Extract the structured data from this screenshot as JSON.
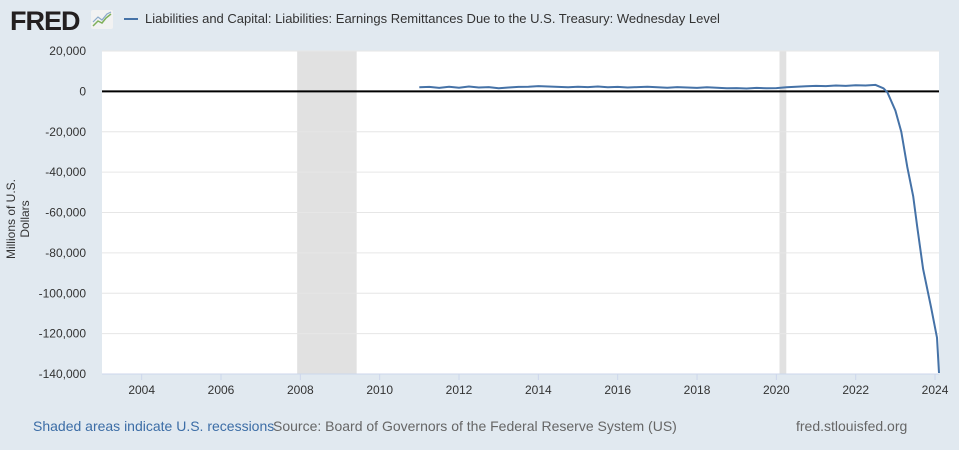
{
  "logo": "FRED",
  "chart_data": {
    "type": "line",
    "title": "Liabilities and Capital: Liabilities: Earnings Remittances Due to the U.S. Treasury: Wednesday Level",
    "ylabel": "Millions of U.S. Dollars",
    "xlabel": "",
    "xlim": [
      2003.0,
      2024.1
    ],
    "ylim": [
      -140000,
      20000
    ],
    "x_ticks": [
      "2004",
      "2006",
      "2008",
      "2010",
      "2012",
      "2014",
      "2016",
      "2018",
      "2020",
      "2022",
      "2024"
    ],
    "y_ticks": [
      "20,000",
      "0",
      "-20,000",
      "-40,000",
      "-60,000",
      "-80,000",
      "-100,000",
      "-120,000",
      "-140,000"
    ],
    "y_tick_values": [
      20000,
      0,
      -20000,
      -40000,
      -60000,
      -80000,
      -100000,
      -120000,
      -140000
    ],
    "grid": true,
    "recessions": [
      [
        2007.92,
        2009.42
      ],
      [
        2020.08,
        2020.25
      ]
    ],
    "line_color": "#4572a7",
    "series": [
      {
        "name": "Liabilities and Capital: Liabilities: Earnings Remittances Due to the U.S. Treasury: Wednesday Level",
        "x": [
          2011.0,
          2011.25,
          2011.5,
          2011.75,
          2012.0,
          2012.25,
          2012.5,
          2012.75,
          2013.0,
          2013.25,
          2013.5,
          2013.75,
          2014.0,
          2014.25,
          2014.5,
          2014.75,
          2015.0,
          2015.25,
          2015.5,
          2015.75,
          2016.0,
          2016.25,
          2016.5,
          2016.75,
          2017.0,
          2017.25,
          2017.5,
          2017.75,
          2018.0,
          2018.25,
          2018.5,
          2018.75,
          2019.0,
          2019.25,
          2019.5,
          2019.75,
          2020.0,
          2020.25,
          2020.5,
          2020.75,
          2021.0,
          2021.25,
          2021.5,
          2021.75,
          2022.0,
          2022.25,
          2022.5,
          2022.7,
          2022.8,
          2023.0,
          2023.15,
          2023.3,
          2023.45,
          2023.55,
          2023.7,
          2023.9,
          2024.05,
          2024.1
        ],
        "y": [
          2000,
          2200,
          1700,
          2300,
          1800,
          2400,
          1900,
          2100,
          1500,
          1900,
          2200,
          2300,
          2600,
          2400,
          2200,
          2000,
          2300,
          2100,
          2400,
          2000,
          2200,
          1900,
          2100,
          2300,
          2000,
          1800,
          2100,
          1900,
          1700,
          2000,
          1800,
          1500,
          1600,
          1400,
          1700,
          1500,
          1600,
          2000,
          2300,
          2500,
          2700,
          2600,
          2900,
          2700,
          3000,
          2900,
          3200,
          1500,
          -500,
          -9500,
          -20000,
          -37500,
          -52000,
          -67000,
          -88000,
          -107000,
          -122000,
          -139500
        ]
      }
    ]
  },
  "footer": {
    "recession_note": "Shaded areas indicate U.S. recessions",
    "source": "Source: Board of Governors of the Federal Reserve System (US)",
    "site": "fred.stlouisfed.org"
  }
}
